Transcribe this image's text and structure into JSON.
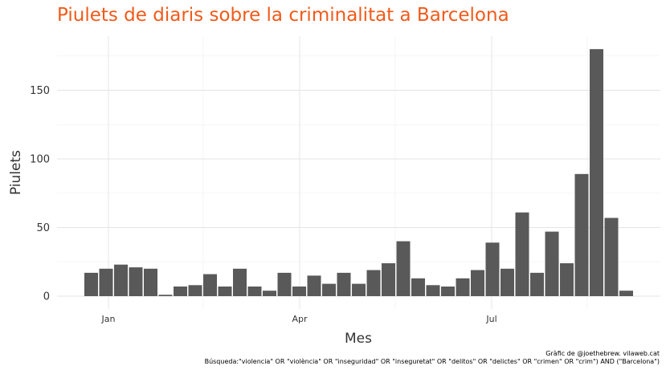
{
  "chart_data": {
    "type": "bar",
    "title": "Piulets de diaris sobre la criminalitat a Barcelona",
    "xlabel": "Mes",
    "ylabel": "Piulets",
    "x_ticks": [
      "Jan",
      "Apr",
      "Jul"
    ],
    "y_ticks": [
      0,
      50,
      100,
      150
    ],
    "ylim": [
      0,
      190
    ],
    "grid": true,
    "values": [
      17,
      20,
      23,
      21,
      20,
      1,
      7,
      8,
      16,
      7,
      20,
      7,
      4,
      17,
      7,
      15,
      9,
      17,
      9,
      19,
      24,
      40,
      13,
      8,
      7,
      13,
      19,
      39,
      20,
      61,
      17,
      47,
      24,
      89,
      180,
      57,
      4
    ]
  },
  "caption": {
    "credit": "Gràfic de @joethebrew. vilaweb.cat",
    "query": "Búsqueda:\"violencia\" OR \"violència\" OR \"inseguridad\" OR \"inseguretat\" OR \"delitos\" OR \"delictes\" OR \"crimen\" OR \"crim\") AND (\"Barcelona\")"
  }
}
